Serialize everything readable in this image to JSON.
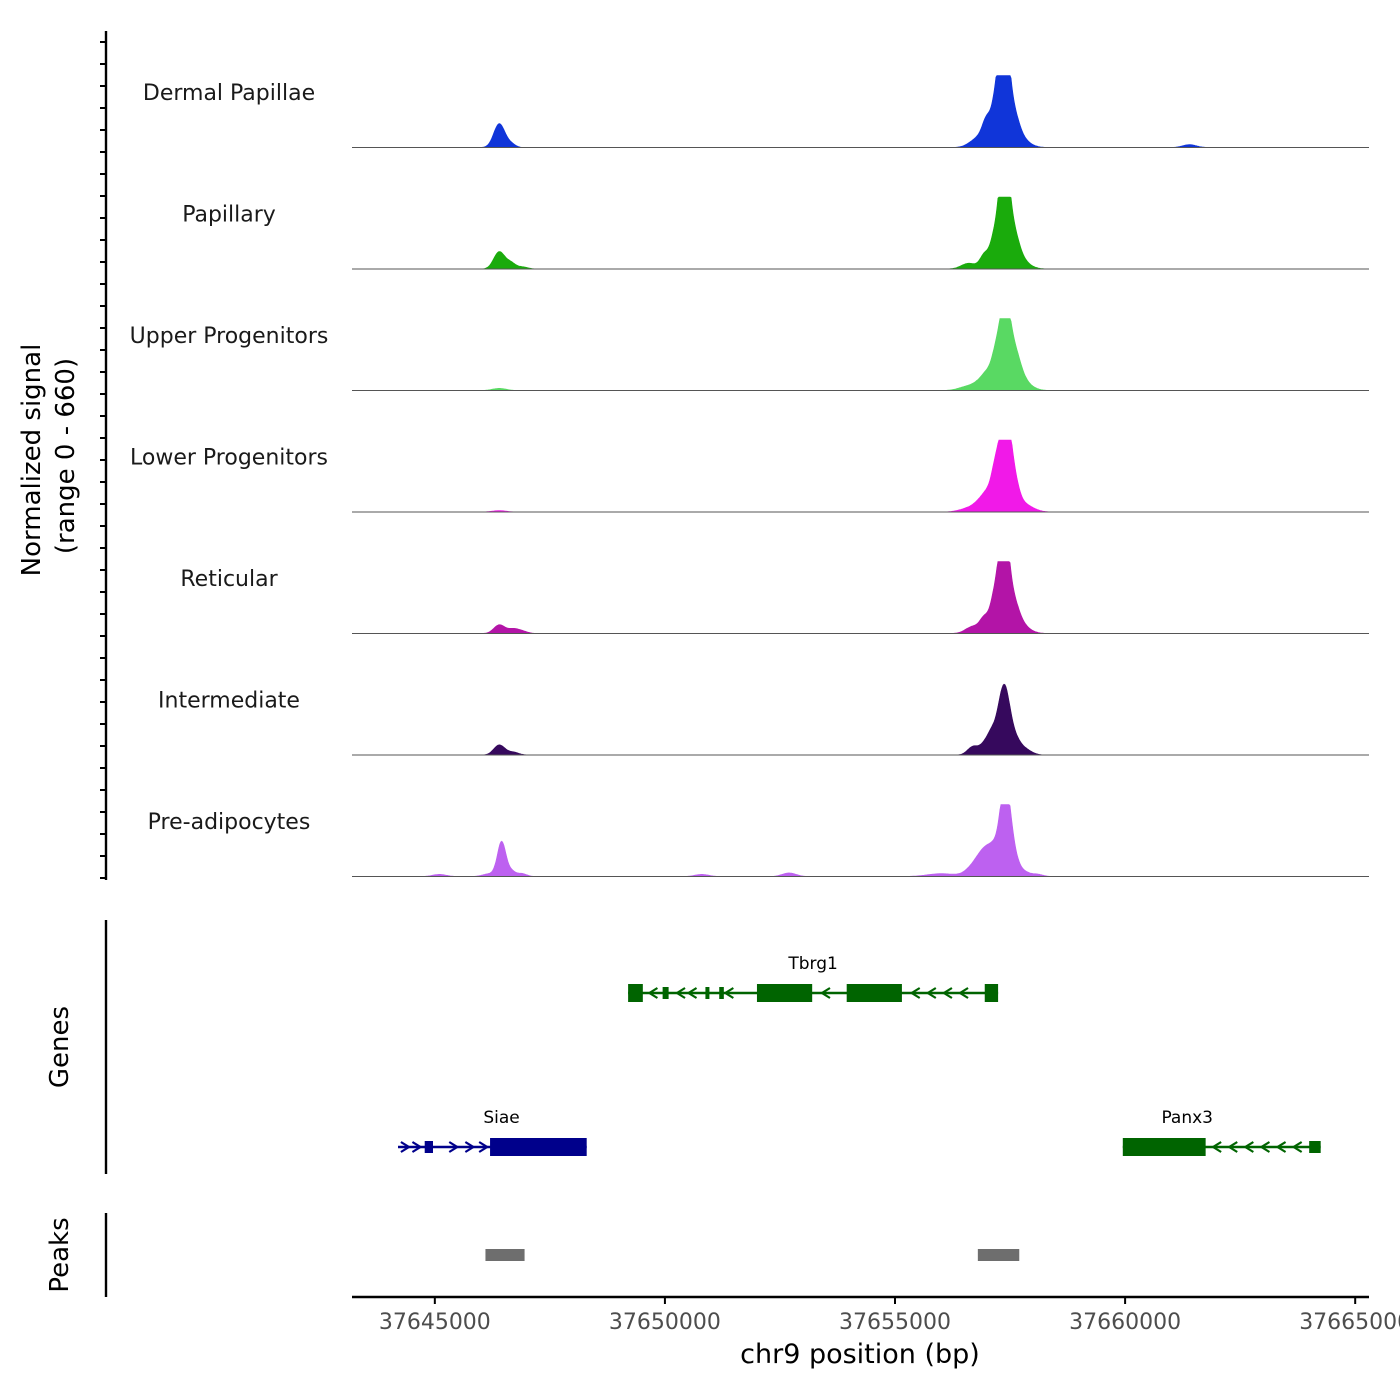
{
  "chart_data": {
    "type": "area",
    "title": "",
    "xlabel": "chr9 position (bp)",
    "ylabel": "Normalized signal",
    "ylabel_range": "(range 0 - 660)",
    "xlim": [
      37643200,
      37665300
    ],
    "ylim": [
      0,
      660
    ],
    "x_ticks": [
      37645000,
      37650000,
      37655000,
      37660000,
      37665000
    ],
    "x_tick_labels": [
      "37645000",
      "37650000",
      "37655000",
      "37660000",
      "37665000"
    ],
    "tracks": [
      {
        "name": "Dermal Papillae",
        "color": "#1035d9",
        "peaks": [
          [
            37646400,
            0.33,
            120
          ],
          [
            37646650,
            0.05,
            100
          ],
          [
            37656800,
            0.12,
            180
          ],
          [
            37656950,
            0.08,
            120
          ],
          [
            37657000,
            0.25,
            90
          ],
          [
            37657150,
            0.08,
            100
          ],
          [
            37657200,
            0.4,
            90
          ],
          [
            37657300,
            0.45,
            110
          ],
          [
            37657380,
            0.97,
            90
          ],
          [
            37657500,
            0.55,
            150
          ],
          [
            37657700,
            0.12,
            200
          ],
          [
            37661400,
            0.04,
            150
          ]
        ]
      },
      {
        "name": "Papillary",
        "color": "#1aab0c",
        "peaks": [
          [
            37646400,
            0.24,
            120
          ],
          [
            37646650,
            0.08,
            100
          ],
          [
            37646900,
            0.03,
            120
          ],
          [
            37656600,
            0.08,
            160
          ],
          [
            37656950,
            0.2,
            100
          ],
          [
            37657150,
            0.33,
            90
          ],
          [
            37657300,
            0.45,
            100
          ],
          [
            37657380,
            0.97,
            90
          ],
          [
            37657500,
            0.6,
            150
          ],
          [
            37657700,
            0.12,
            200
          ]
        ]
      },
      {
        "name": "Upper Progenitors",
        "color": "#59d963",
        "peaks": [
          [
            37646400,
            0.03,
            150
          ],
          [
            37656600,
            0.06,
            200
          ],
          [
            37656900,
            0.12,
            150
          ],
          [
            37657050,
            0.18,
            120
          ],
          [
            37657200,
            0.4,
            90
          ],
          [
            37657380,
            0.98,
            100
          ],
          [
            37657550,
            0.55,
            150
          ],
          [
            37657750,
            0.12,
            200
          ]
        ]
      },
      {
        "name": "Lower Progenitors",
        "color": "#f119e8",
        "peaks": [
          [
            37646400,
            0.02,
            150
          ],
          [
            37656600,
            0.05,
            200
          ],
          [
            37656900,
            0.15,
            160
          ],
          [
            37657050,
            0.18,
            120
          ],
          [
            37657200,
            0.55,
            90
          ],
          [
            37657380,
            1.0,
            90
          ],
          [
            37657500,
            0.7,
            130
          ],
          [
            37657750,
            0.12,
            220
          ]
        ]
      },
      {
        "name": "Reticular",
        "color": "#b314a7",
        "peaks": [
          [
            37646400,
            0.12,
            120
          ],
          [
            37646700,
            0.06,
            120
          ],
          [
            37646900,
            0.03,
            120
          ],
          [
            37656700,
            0.1,
            160
          ],
          [
            37656950,
            0.2,
            100
          ],
          [
            37657150,
            0.38,
            90
          ],
          [
            37657300,
            0.55,
            100
          ],
          [
            37657380,
            0.82,
            90
          ],
          [
            37657500,
            0.5,
            150
          ],
          [
            37657700,
            0.12,
            200
          ]
        ]
      },
      {
        "name": "Intermediate",
        "color": "#36095d",
        "peaks": [
          [
            37646400,
            0.14,
            120
          ],
          [
            37646700,
            0.04,
            120
          ],
          [
            37656700,
            0.12,
            120
          ],
          [
            37656950,
            0.14,
            100
          ],
          [
            37657100,
            0.25,
            90
          ],
          [
            37657250,
            0.3,
            90
          ],
          [
            37657380,
            0.62,
            100
          ],
          [
            37657500,
            0.35,
            150
          ],
          [
            37657800,
            0.08,
            160
          ]
        ]
      },
      {
        "name": "Pre-adipocytes",
        "color": "#bd61f0",
        "peaks": [
          [
            37645100,
            0.03,
            150
          ],
          [
            37646200,
            0.04,
            150
          ],
          [
            37646450,
            0.47,
            90
          ],
          [
            37646650,
            0.08,
            100
          ],
          [
            37646900,
            0.04,
            100
          ],
          [
            37650800,
            0.03,
            150
          ],
          [
            37652700,
            0.05,
            150
          ],
          [
            37656000,
            0.04,
            300
          ],
          [
            37656800,
            0.2,
            200
          ],
          [
            37657000,
            0.25,
            150
          ],
          [
            37657200,
            0.28,
            120
          ],
          [
            37657380,
            0.92,
            100
          ],
          [
            37657500,
            0.5,
            120
          ],
          [
            37657750,
            0.08,
            150
          ],
          [
            37658100,
            0.03,
            120
          ]
        ]
      }
    ],
    "genes_label": "Genes",
    "genes": [
      {
        "name": "Tbrg1",
        "start": 37649200,
        "end": 37657240,
        "strand": "-",
        "color": "#006400",
        "row": 0,
        "exons": [
          [
            37649200,
            37649520,
            "big"
          ],
          [
            37649950,
            37650080,
            "small"
          ],
          [
            37650880,
            37650960,
            "small"
          ],
          [
            37651180,
            37651280,
            "small"
          ],
          [
            37652000,
            37653200,
            "big"
          ],
          [
            37653950,
            37655150,
            "big"
          ],
          [
            37656950,
            37657240,
            "big"
          ]
        ],
        "arrows": [
          37649750,
          37650350,
          37650600,
          37651400,
          37653500,
          37655450,
          37655800,
          37656150,
          37656500
        ]
      },
      {
        "name": "Siae",
        "start": 37644200,
        "end": 37648300,
        "strand": "+",
        "color": "#00008b",
        "row": 1,
        "exons": [
          [
            37644780,
            37644960,
            "small"
          ],
          [
            37646200,
            37648300,
            "big"
          ]
        ],
        "arrows": [
          37644350,
          37644600,
          37645400,
          37645750,
          37646050
        ]
      },
      {
        "name": "Panx3",
        "start": 37659950,
        "end": 37664250,
        "strand": "-",
        "color": "#006400",
        "row": 1,
        "exons": [
          [
            37659950,
            37661750,
            "big"
          ],
          [
            37664000,
            37664250,
            "small"
          ]
        ],
        "arrows": [
          37662000,
          37662350,
          37662700,
          37663050,
          37663400,
          37663750
        ]
      }
    ],
    "peaks_label": "Peaks",
    "peak_regions": [
      [
        37646100,
        37646950
      ],
      [
        37656800,
        37657700
      ]
    ]
  }
}
